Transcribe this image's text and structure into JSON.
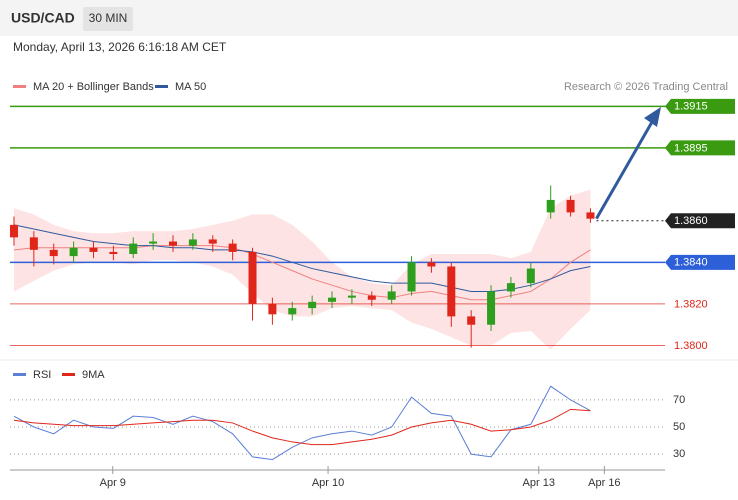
{
  "header": {
    "symbol": "USD/CAD",
    "timeframe": "30 MIN",
    "datetime": "Monday, April 13, 2026 6:16:18 AM CET"
  },
  "chart_data": [
    {
      "type": "candlestick",
      "credit": "Research © 2026 Trading Central",
      "up_color": "#2e9e1f",
      "down_color": "#e0261b",
      "open": [
        1.3858,
        1.3852,
        1.3846,
        1.3843,
        1.3847,
        1.3845,
        1.3844,
        1.3849,
        1.385,
        1.3848,
        1.3851,
        1.3849,
        1.3845,
        1.382,
        1.3815,
        1.3818,
        1.3821,
        1.3823,
        1.3824,
        1.3822,
        1.3826,
        1.384,
        1.3838,
        1.3814,
        1.381,
        1.3826,
        1.383,
        1.3864,
        1.387,
        1.3864
      ],
      "high": [
        1.3862,
        1.3855,
        1.3849,
        1.385,
        1.385,
        1.3848,
        1.3852,
        1.3854,
        1.3853,
        1.3854,
        1.3853,
        1.3851,
        1.3847,
        1.3823,
        1.3821,
        1.3824,
        1.3826,
        1.3827,
        1.3826,
        1.3829,
        1.3843,
        1.3842,
        1.384,
        1.3817,
        1.3829,
        1.3833,
        1.384,
        1.3877,
        1.3872,
        1.3866
      ],
      "low": [
        1.3848,
        1.3838,
        1.3839,
        1.384,
        1.3842,
        1.3841,
        1.3842,
        1.3846,
        1.3845,
        1.3846,
        1.3845,
        1.3841,
        1.3812,
        1.381,
        1.3812,
        1.3815,
        1.3818,
        1.382,
        1.3819,
        1.382,
        1.3824,
        1.3835,
        1.3809,
        1.3799,
        1.3807,
        1.3823,
        1.3828,
        1.3861,
        1.3862,
        1.3859
      ],
      "close": [
        1.3852,
        1.3846,
        1.3843,
        1.3847,
        1.3845,
        1.3844,
        1.3849,
        1.385,
        1.3848,
        1.3851,
        1.3849,
        1.3845,
        1.382,
        1.3815,
        1.3818,
        1.3821,
        1.3823,
        1.3824,
        1.3822,
        1.3826,
        1.384,
        1.3838,
        1.3814,
        1.381,
        1.3826,
        1.383,
        1.3837,
        1.387,
        1.3864,
        1.3861
      ],
      "indicators": [
        {
          "name": "MA 20 + Bollinger Bands",
          "color": "#f08080",
          "band_color": "#fddcdc",
          "values": [
            1.3846,
            1.3847,
            1.3847,
            1.3847,
            1.3847,
            1.3847,
            1.3847,
            1.3848,
            1.3848,
            1.3848,
            1.3848,
            1.3847,
            1.3844,
            1.384,
            1.3836,
            1.3832,
            1.3829,
            1.3826,
            1.3824,
            1.3823,
            1.3825,
            1.3826,
            1.3824,
            1.3822,
            1.3822,
            1.3824,
            1.3826,
            1.3832,
            1.384,
            1.3846
          ],
          "upper": [
            1.3866,
            1.3863,
            1.3858,
            1.3855,
            1.3854,
            1.3854,
            1.3855,
            1.3855,
            1.3855,
            1.3856,
            1.3858,
            1.386,
            1.3863,
            1.3863,
            1.3858,
            1.385,
            1.384,
            1.3833,
            1.383,
            1.3829,
            1.3839,
            1.3844,
            1.3844,
            1.3844,
            1.3844,
            1.3842,
            1.3845,
            1.3866,
            1.3872,
            1.3875
          ],
          "lower": [
            1.3826,
            1.3831,
            1.3836,
            1.3839,
            1.384,
            1.384,
            1.3839,
            1.3841,
            1.3841,
            1.384,
            1.3838,
            1.3834,
            1.3825,
            1.3817,
            1.3814,
            1.3814,
            1.3818,
            1.3819,
            1.3818,
            1.3817,
            1.3811,
            1.3808,
            1.3804,
            1.38,
            1.38,
            1.3806,
            1.3807,
            1.3798,
            1.3808,
            1.3817
          ]
        },
        {
          "name": "MA 50",
          "color": "#2f5a9e",
          "values": [
            1.3858,
            1.3856,
            1.3854,
            1.3852,
            1.385,
            1.3849,
            1.3848,
            1.3848,
            1.3847,
            1.3847,
            1.3846,
            1.3846,
            1.3845,
            1.3843,
            1.384,
            1.3837,
            1.3835,
            1.3833,
            1.3831,
            1.383,
            1.383,
            1.383,
            1.3828,
            1.3826,
            1.3826,
            1.3827,
            1.3829,
            1.3832,
            1.3836,
            1.3838
          ]
        }
      ],
      "levels": [
        {
          "value": 1.3915,
          "label": "1.3915",
          "color": "#3a9a10",
          "style": "tag",
          "line": "solid"
        },
        {
          "value": 1.3895,
          "label": "1.3895",
          "color": "#3a9a10",
          "style": "tag",
          "line": "solid"
        },
        {
          "value": 1.386,
          "label": "1.3860",
          "color": "#222222",
          "style": "tag",
          "line": "dotted"
        },
        {
          "value": 1.384,
          "label": "1.3840",
          "color": "#2d5fd8",
          "style": "tag",
          "line": "solid"
        },
        {
          "value": 1.382,
          "label": "1.3820",
          "color": "#e0261b",
          "style": "plain",
          "line": "solid"
        },
        {
          "value": 1.38,
          "label": "1.3800",
          "color": "#e0261b",
          "style": "plain",
          "line": "solid"
        }
      ],
      "ylim": [
        1.3794,
        1.3919
      ],
      "xlim": [
        -0.2,
        32.7
      ],
      "xticks": [
        {
          "value": 4.97,
          "label": "Apr 9"
        },
        {
          "value": 15.8,
          "label": "Apr 10"
        },
        {
          "value": 26.4,
          "label": "Apr 13"
        },
        {
          "value": 29.7,
          "label": "Apr 16"
        }
      ]
    },
    {
      "type": "line",
      "series": [
        {
          "name": "RSI",
          "color": "#5b7fd6",
          "values": [
            58,
            50,
            45,
            55,
            50,
            49,
            58,
            57,
            52,
            58,
            54,
            45,
            28,
            26,
            35,
            42,
            45,
            47,
            44,
            50,
            72,
            60,
            58,
            30,
            28,
            48,
            52,
            80,
            70,
            62
          ]
        },
        {
          "name": "9MA",
          "color": "#e0261b",
          "values": [
            55,
            53,
            52,
            51,
            51,
            51,
            52,
            53,
            54,
            55,
            55,
            53,
            47,
            42,
            39,
            37,
            37,
            39,
            41,
            44,
            50,
            53,
            55,
            52,
            47,
            48,
            50,
            55,
            63,
            62
          ]
        }
      ],
      "ylim": [
        22,
        92
      ],
      "yticks": [
        30,
        50,
        70
      ]
    }
  ]
}
